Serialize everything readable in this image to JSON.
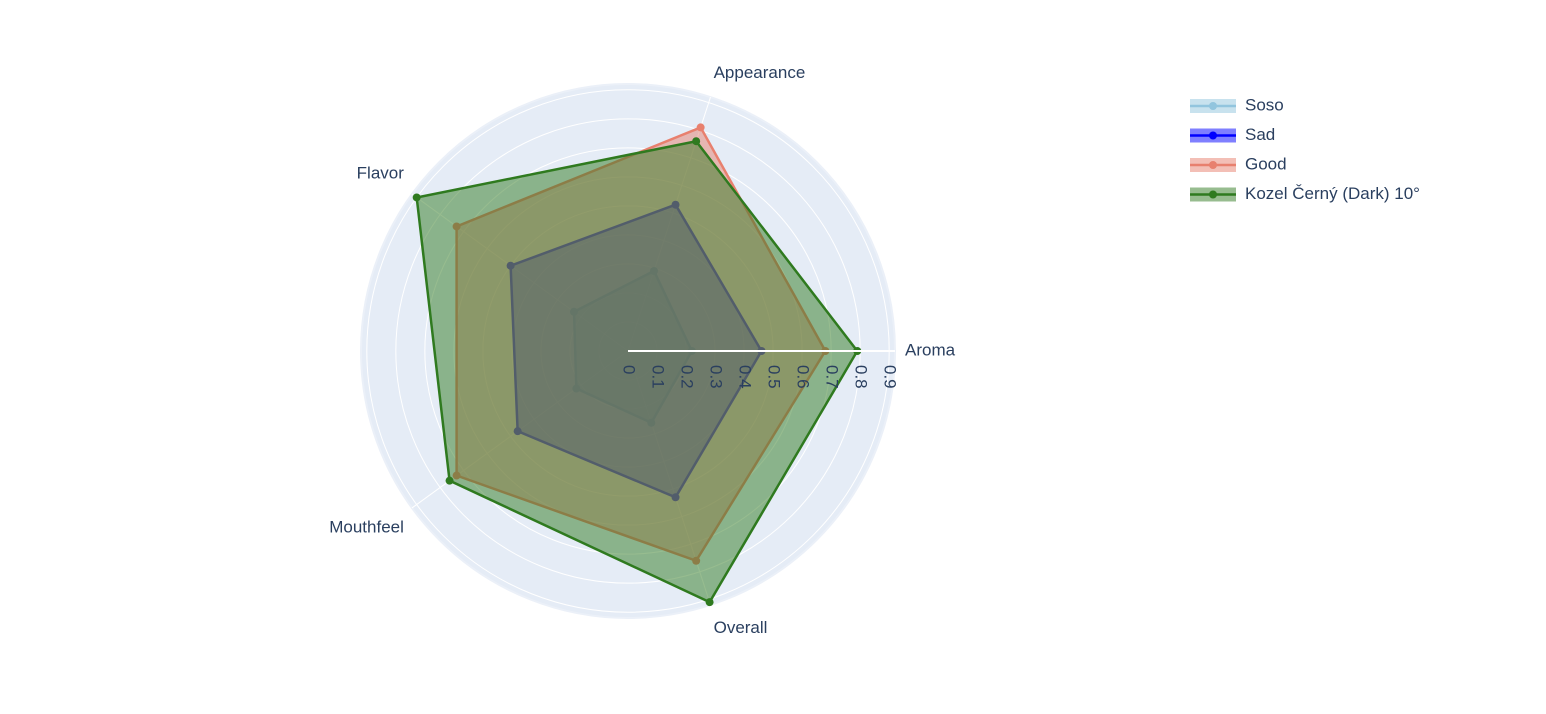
{
  "chart_data": {
    "type": "radar",
    "categories": [
      "Aroma",
      "Appearance",
      "Flavor",
      "Mouthfeel",
      "Overall"
    ],
    "rlim": [
      0,
      0.92
    ],
    "rticks": [
      0,
      0.1,
      0.2,
      0.3,
      0.4,
      0.5,
      0.6,
      0.7,
      0.8,
      0.9
    ],
    "series": [
      {
        "name": "Soso",
        "color": "#92c5de",
        "values": [
          0.22,
          0.29,
          0.23,
          0.22,
          0.26
        ]
      },
      {
        "name": "Sad",
        "color": "#0000ff",
        "values": [
          0.46,
          0.53,
          0.5,
          0.47,
          0.53
        ]
      },
      {
        "name": "Good",
        "color": "#e8806e",
        "values": [
          0.68,
          0.81,
          0.73,
          0.73,
          0.76
        ]
      },
      {
        "name": "Kozel Černý (Dark) 10°",
        "color": "#2f7a1f",
        "values": [
          0.79,
          0.76,
          0.9,
          0.76,
          0.91
        ]
      }
    ]
  }
}
